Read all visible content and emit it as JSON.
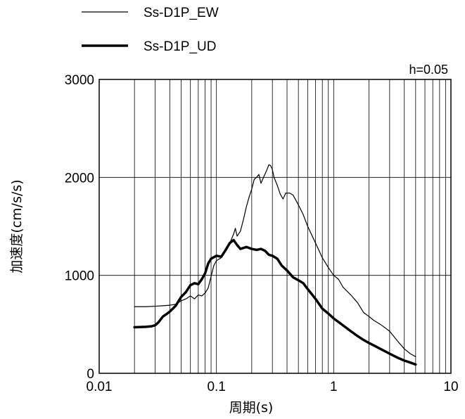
{
  "chart_data": {
    "type": "line",
    "x_scale": "log",
    "xlim": [
      0.01,
      10
    ],
    "ylim": [
      0,
      3000
    ],
    "xlabel": "周期(s)",
    "ylabel": "加速度(cm/s/s)",
    "annotation": "h=0.05",
    "x_ticks": [
      {
        "value": 0.01,
        "label": "0.01"
      },
      {
        "value": 0.1,
        "label": "0.1"
      },
      {
        "value": 1,
        "label": "1"
      },
      {
        "value": 10,
        "label": "10"
      }
    ],
    "y_ticks": [
      {
        "value": 0,
        "label": "0"
      },
      {
        "value": 1000,
        "label": "1000"
      },
      {
        "value": 2000,
        "label": "2000"
      },
      {
        "value": 3000,
        "label": "3000"
      }
    ],
    "grid": true,
    "legend_position": "top-left, above plot",
    "series": [
      {
        "name": "Ss-D1P_EW",
        "stroke": "#000000",
        "style": "thin",
        "points": [
          [
            0.02,
            680
          ],
          [
            0.025,
            680
          ],
          [
            0.03,
            685
          ],
          [
            0.035,
            690
          ],
          [
            0.04,
            695
          ],
          [
            0.045,
            705
          ],
          [
            0.05,
            740
          ],
          [
            0.055,
            760
          ],
          [
            0.06,
            790
          ],
          [
            0.065,
            760
          ],
          [
            0.07,
            800
          ],
          [
            0.075,
            790
          ],
          [
            0.08,
            820
          ],
          [
            0.085,
            870
          ],
          [
            0.09,
            990
          ],
          [
            0.095,
            1100
          ],
          [
            0.1,
            1150
          ],
          [
            0.11,
            1180
          ],
          [
            0.12,
            1250
          ],
          [
            0.13,
            1330
          ],
          [
            0.14,
            1420
          ],
          [
            0.145,
            1480
          ],
          [
            0.15,
            1400
          ],
          [
            0.16,
            1450
          ],
          [
            0.17,
            1570
          ],
          [
            0.18,
            1700
          ],
          [
            0.19,
            1800
          ],
          [
            0.2,
            1880
          ],
          [
            0.21,
            1980
          ],
          [
            0.22,
            2000
          ],
          [
            0.23,
            2030
          ],
          [
            0.24,
            1940
          ],
          [
            0.25,
            1990
          ],
          [
            0.27,
            2080
          ],
          [
            0.28,
            2130
          ],
          [
            0.29,
            2120
          ],
          [
            0.3,
            2080
          ],
          [
            0.31,
            2000
          ],
          [
            0.33,
            1920
          ],
          [
            0.35,
            1830
          ],
          [
            0.37,
            1780
          ],
          [
            0.39,
            1840
          ],
          [
            0.42,
            1840
          ],
          [
            0.45,
            1820
          ],
          [
            0.5,
            1720
          ],
          [
            0.55,
            1620
          ],
          [
            0.6,
            1500
          ],
          [
            0.7,
            1330
          ],
          [
            0.8,
            1180
          ],
          [
            0.9,
            1080
          ],
          [
            1.0,
            1000
          ],
          [
            1.1,
            960
          ],
          [
            1.2,
            880
          ],
          [
            1.4,
            800
          ],
          [
            1.6,
            720
          ],
          [
            1.8,
            620
          ],
          [
            2.0,
            580
          ],
          [
            2.2,
            540
          ],
          [
            2.5,
            500
          ],
          [
            3.0,
            430
          ],
          [
            3.5,
            330
          ],
          [
            4.0,
            250
          ],
          [
            4.5,
            200
          ],
          [
            5.0,
            170
          ]
        ]
      },
      {
        "name": "Ss-D1P_UD",
        "stroke": "#000000",
        "style": "thick",
        "points": [
          [
            0.02,
            470
          ],
          [
            0.025,
            475
          ],
          [
            0.028,
            480
          ],
          [
            0.03,
            490
          ],
          [
            0.032,
            520
          ],
          [
            0.035,
            580
          ],
          [
            0.038,
            610
          ],
          [
            0.04,
            630
          ],
          [
            0.045,
            690
          ],
          [
            0.05,
            780
          ],
          [
            0.055,
            830
          ],
          [
            0.06,
            900
          ],
          [
            0.065,
            920
          ],
          [
            0.07,
            910
          ],
          [
            0.075,
            960
          ],
          [
            0.08,
            1020
          ],
          [
            0.085,
            1120
          ],
          [
            0.09,
            1170
          ],
          [
            0.1,
            1200
          ],
          [
            0.11,
            1190
          ],
          [
            0.12,
            1260
          ],
          [
            0.13,
            1330
          ],
          [
            0.14,
            1360
          ],
          [
            0.15,
            1310
          ],
          [
            0.16,
            1270
          ],
          [
            0.17,
            1280
          ],
          [
            0.18,
            1290
          ],
          [
            0.2,
            1270
          ],
          [
            0.22,
            1260
          ],
          [
            0.24,
            1270
          ],
          [
            0.26,
            1250
          ],
          [
            0.28,
            1210
          ],
          [
            0.3,
            1200
          ],
          [
            0.33,
            1170
          ],
          [
            0.36,
            1100
          ],
          [
            0.4,
            1050
          ],
          [
            0.45,
            980
          ],
          [
            0.5,
            950
          ],
          [
            0.55,
            920
          ],
          [
            0.6,
            860
          ],
          [
            0.7,
            760
          ],
          [
            0.8,
            660
          ],
          [
            0.9,
            610
          ],
          [
            1.0,
            560
          ],
          [
            1.2,
            490
          ],
          [
            1.4,
            430
          ],
          [
            1.6,
            380
          ],
          [
            1.8,
            340
          ],
          [
            2.0,
            310
          ],
          [
            2.5,
            250
          ],
          [
            3.0,
            200
          ],
          [
            3.5,
            160
          ],
          [
            4.0,
            130
          ],
          [
            4.5,
            110
          ],
          [
            5.0,
            90
          ]
        ]
      }
    ]
  }
}
